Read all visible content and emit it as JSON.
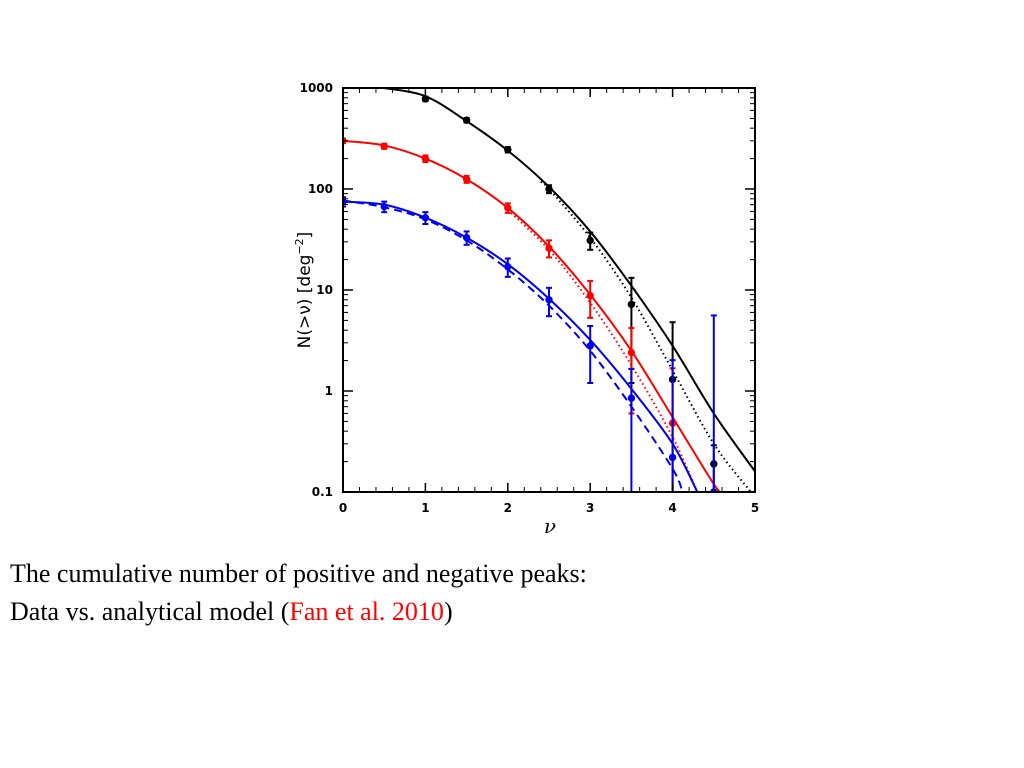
{
  "caption": {
    "line1": "The cumulative number of positive and negative peaks:",
    "line2_prefix": "Data vs. analytical model (",
    "citation": "Fan et al. 2010",
    "line2_suffix": ")"
  },
  "colors": {
    "black": "#000000",
    "red": "#ff0000",
    "blue": "#0000ee"
  },
  "chart_data": {
    "type": "line",
    "xlabel": "ν",
    "ylabel_parts": [
      "N(>ν) [deg",
      "−2",
      "]"
    ],
    "xlim": [
      0,
      5
    ],
    "ylim": [
      0.1,
      1000
    ],
    "yscale": "log",
    "x_ticks": [
      "0",
      "1",
      "2",
      "3",
      "4",
      "5"
    ],
    "y_ticks": [
      "0.1",
      "1",
      "10",
      "100",
      "1000"
    ],
    "grid": false,
    "series": [
      {
        "color": "#000000",
        "data": [
          {
            "x": 1.0,
            "y": 780,
            "err": 40
          },
          {
            "x": 1.5,
            "y": 480,
            "err": 25
          },
          {
            "x": 2.0,
            "y": 245,
            "err": 15
          },
          {
            "x": 2.5,
            "y": 100,
            "err": 9
          },
          {
            "x": 3.0,
            "y": 31,
            "err": 6
          },
          {
            "x": 3.5,
            "y": 7.2,
            "err": 6
          },
          {
            "x": 4.0,
            "y": 1.3,
            "err": 3.5
          },
          {
            "x": 4.5,
            "y": 0.19,
            "err": 0.1
          }
        ],
        "model_solid": [
          [
            0.5,
            1000
          ],
          [
            1.0,
            830
          ],
          [
            1.5,
            470
          ],
          [
            2.0,
            240
          ],
          [
            2.5,
            105
          ],
          [
            3.0,
            38
          ],
          [
            3.5,
            11
          ],
          [
            4.0,
            2.8
          ],
          [
            4.5,
            0.6
          ],
          [
            5.0,
            0.16
          ]
        ],
        "model_dotted": [
          [
            2.4,
            118
          ],
          [
            2.5,
            100
          ],
          [
            3.0,
            33
          ],
          [
            3.5,
            8.4
          ],
          [
            4.0,
            1.6
          ],
          [
            4.5,
            0.3
          ],
          [
            4.95,
            0.1
          ]
        ]
      },
      {
        "color": "#ff0000",
        "data": [
          {
            "x": 0.0,
            "y": 300,
            "err": 15
          },
          {
            "x": 0.5,
            "y": 265,
            "err": 15
          },
          {
            "x": 1.0,
            "y": 200,
            "err": 15
          },
          {
            "x": 1.5,
            "y": 125,
            "err": 10
          },
          {
            "x": 2.0,
            "y": 65,
            "err": 7
          },
          {
            "x": 2.5,
            "y": 26,
            "err": 5
          },
          {
            "x": 3.0,
            "y": 8.8,
            "err": 3.5
          },
          {
            "x": 3.5,
            "y": 2.4,
            "err": 1.8
          },
          {
            "x": 4.0,
            "y": 0.48,
            "err": 1.2
          }
        ],
        "model_solid": [
          [
            0.0,
            300
          ],
          [
            0.5,
            270
          ],
          [
            1.0,
            200
          ],
          [
            1.5,
            125
          ],
          [
            2.0,
            65
          ],
          [
            2.5,
            27
          ],
          [
            3.0,
            9
          ],
          [
            3.5,
            2.5
          ],
          [
            4.0,
            0.55
          ],
          [
            4.5,
            0.12
          ],
          [
            4.6,
            0.1
          ]
        ],
        "model_dotted": [
          [
            2.0,
            62
          ],
          [
            2.5,
            25
          ],
          [
            3.0,
            7.5
          ],
          [
            3.5,
            1.8
          ],
          [
            4.0,
            0.35
          ],
          [
            4.3,
            0.1
          ]
        ]
      },
      {
        "color": "#0000ee",
        "data": [
          {
            "x": 0.0,
            "y": 75,
            "err": 8
          },
          {
            "x": 0.5,
            "y": 67,
            "err": 8
          },
          {
            "x": 1.0,
            "y": 52,
            "err": 7
          },
          {
            "x": 1.5,
            "y": 33,
            "err": 5
          },
          {
            "x": 2.0,
            "y": 17,
            "err": 3.5
          },
          {
            "x": 2.5,
            "y": 8,
            "err": 2.5
          },
          {
            "x": 3.0,
            "y": 2.8,
            "err": 1.6
          },
          {
            "x": 3.5,
            "y": 0.85,
            "err": 0.8
          },
          {
            "x": 4.0,
            "y": 0.22,
            "err": 1.8
          },
          {
            "x": 4.5,
            "y": 0.1,
            "err": 5.5
          }
        ],
        "model_solid": [
          [
            0.0,
            75
          ],
          [
            0.5,
            70
          ],
          [
            1.0,
            52
          ],
          [
            1.5,
            33
          ],
          [
            2.0,
            18
          ],
          [
            2.5,
            8.2
          ],
          [
            3.0,
            3.2
          ],
          [
            3.5,
            1.05
          ],
          [
            4.0,
            0.3
          ],
          [
            4.3,
            0.1
          ]
        ],
        "model_dashed": [
          [
            0.0,
            77
          ],
          [
            0.5,
            66
          ],
          [
            1.0,
            50
          ],
          [
            1.5,
            31
          ],
          [
            2.0,
            16
          ],
          [
            2.5,
            7
          ],
          [
            3.0,
            2.5
          ],
          [
            3.5,
            0.7
          ],
          [
            4.0,
            0.17
          ],
          [
            4.12,
            0.1
          ]
        ]
      }
    ]
  }
}
